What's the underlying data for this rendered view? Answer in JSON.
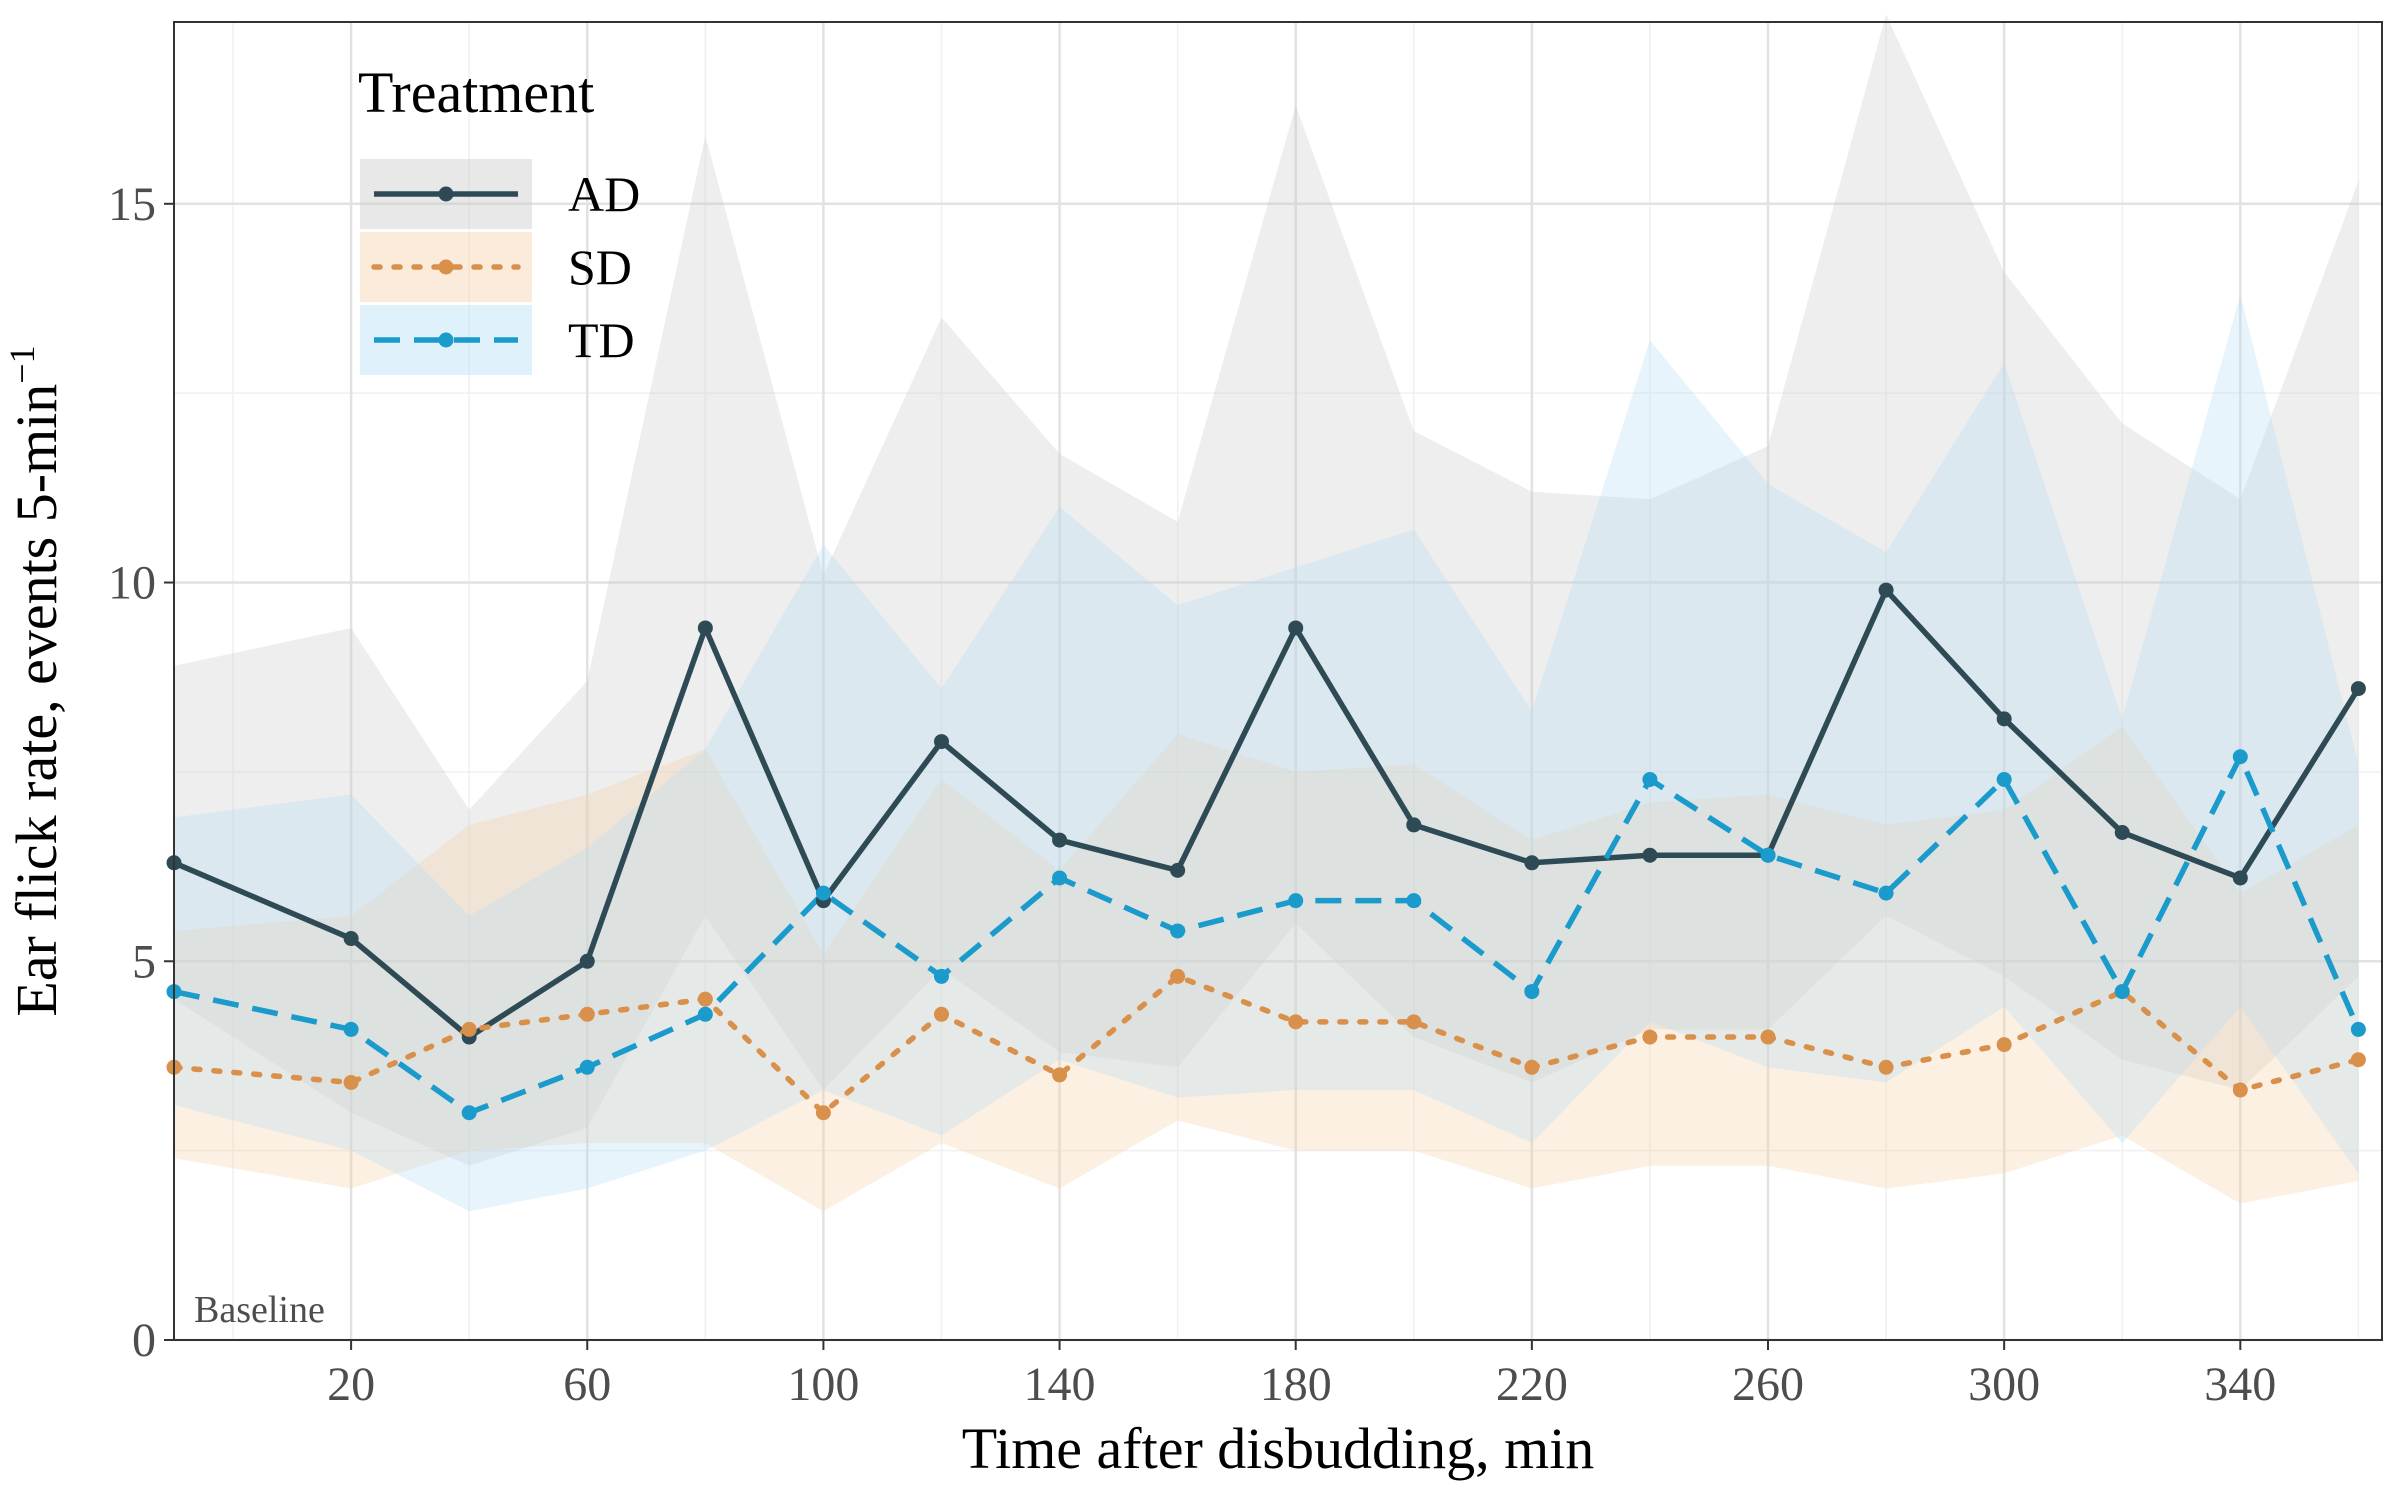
{
  "chart_data": {
    "type": "line",
    "xlabel": "Time after disbudding, min",
    "ylabel_main": "Ear flick rate, events 5-min",
    "ylabel_superscript": "−1",
    "xlim": [
      -10,
      364
    ],
    "ylim": [
      0,
      17.4
    ],
    "x_ticks": [
      20,
      60,
      100,
      140,
      180,
      220,
      260,
      300,
      340
    ],
    "x_tick_labels": [
      "20",
      "60",
      "100",
      "140",
      "180",
      "220",
      "260",
      "300",
      "340"
    ],
    "y_ticks": [
      0,
      5,
      10,
      15
    ],
    "y_tick_labels": [
      "0",
      "5",
      "10",
      "15"
    ],
    "x_minor_gridlines": [
      0,
      40,
      80,
      120,
      160,
      200,
      240,
      280,
      320,
      360
    ],
    "y_minor_gridlines": [
      2.5,
      7.5,
      12.5,
      17.5
    ],
    "annotation": "Baseline",
    "grid": true,
    "legend": {
      "title": "Treatment",
      "position": "top-left"
    },
    "x": [
      -10,
      20,
      40,
      60,
      80,
      100,
      120,
      140,
      160,
      180,
      200,
      220,
      240,
      260,
      280,
      300,
      320,
      340,
      360
    ],
    "series": [
      {
        "name": "AD",
        "color": "#2e4a55",
        "dash": "solid",
        "values": [
          6.3,
          5.3,
          4.0,
          5.0,
          9.4,
          5.8,
          7.9,
          6.6,
          6.2,
          9.4,
          6.8,
          6.3,
          6.4,
          6.4,
          9.9,
          8.2,
          6.7,
          6.1,
          8.6
        ],
        "lower": [
          4.5,
          3.0,
          2.3,
          2.8,
          5.6,
          3.3,
          4.9,
          3.8,
          3.6,
          5.5,
          4.0,
          3.4,
          4.1,
          4.1,
          5.6,
          4.8,
          3.7,
          3.3,
          4.8
        ],
        "upper": [
          8.9,
          9.4,
          7.0,
          8.7,
          15.9,
          10.1,
          13.5,
          11.7,
          10.8,
          16.3,
          12.0,
          11.2,
          11.1,
          11.8,
          17.5,
          14.1,
          12.1,
          11.1,
          15.3
        ]
      },
      {
        "name": "SD",
        "color": "#d9904a",
        "dash": "dotted",
        "values": [
          3.6,
          3.4,
          4.1,
          4.3,
          4.5,
          3.0,
          4.3,
          3.5,
          4.8,
          4.2,
          4.2,
          3.6,
          4.0,
          4.0,
          3.6,
          3.9,
          4.6,
          3.3,
          3.7
        ],
        "lower": [
          2.4,
          2.0,
          2.5,
          2.6,
          2.6,
          1.7,
          2.6,
          2.0,
          2.9,
          2.5,
          2.5,
          2.0,
          2.3,
          2.3,
          2.0,
          2.2,
          2.7,
          1.8,
          2.1
        ],
        "upper": [
          5.4,
          5.6,
          6.8,
          7.2,
          7.8,
          5.1,
          7.4,
          6.2,
          8.0,
          7.5,
          7.6,
          6.6,
          7.1,
          7.2,
          6.8,
          7.0,
          8.1,
          5.9,
          6.8
        ]
      },
      {
        "name": "TD",
        "color": "#1a9bcc",
        "dash": "dashed",
        "values": [
          4.6,
          4.1,
          3.0,
          3.6,
          4.3,
          5.9,
          4.8,
          6.1,
          5.4,
          5.8,
          5.8,
          4.6,
          7.4,
          6.4,
          5.9,
          7.4,
          4.6,
          7.7,
          4.1
        ],
        "lower": [
          3.1,
          2.5,
          1.7,
          2.0,
          2.5,
          3.3,
          2.7,
          3.7,
          3.2,
          3.3,
          3.3,
          2.6,
          4.2,
          3.6,
          3.4,
          4.4,
          2.6,
          4.4,
          2.2
        ],
        "upper": [
          6.9,
          7.2,
          5.6,
          6.5,
          7.8,
          10.5,
          8.6,
          11.0,
          9.7,
          10.2,
          10.7,
          8.3,
          13.2,
          11.3,
          10.4,
          12.9,
          8.2,
          13.8,
          7.6
        ]
      }
    ]
  }
}
